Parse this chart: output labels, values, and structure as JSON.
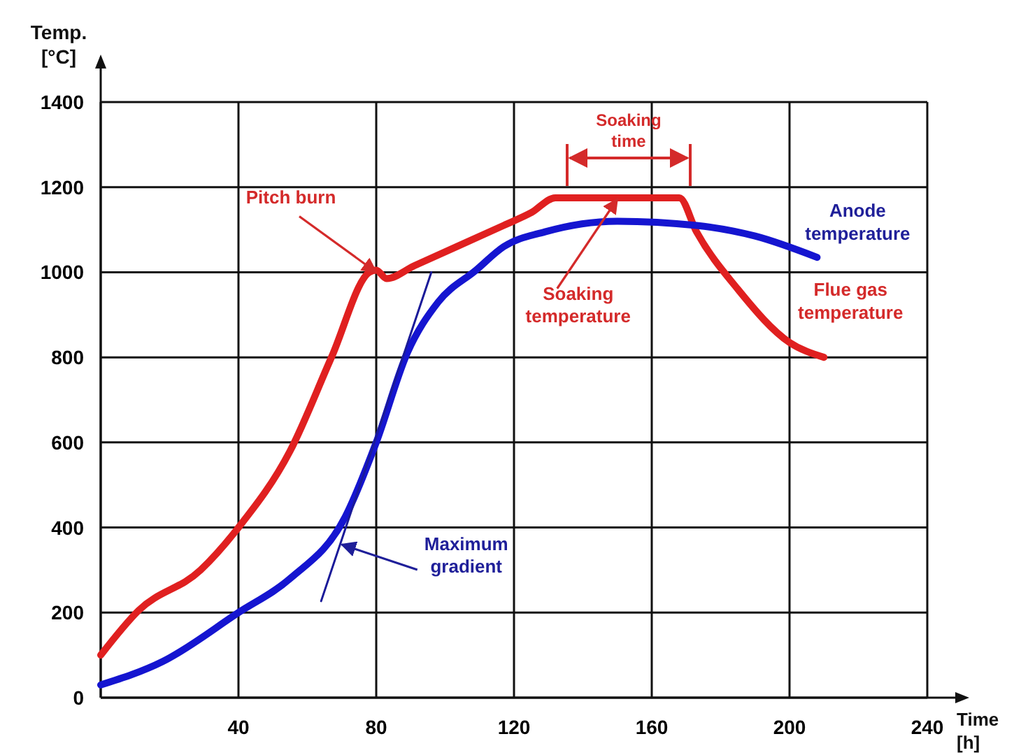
{
  "chart_data": {
    "type": "line",
    "xlabel": "Time\n[h]",
    "ylabel": "Temp.\n[°C]",
    "xlim": [
      0,
      240
    ],
    "ylim": [
      0,
      1400
    ],
    "xticks": [
      {
        "value": 0,
        "label": null
      },
      40,
      80,
      120,
      160,
      200,
      240
    ],
    "yticks": [
      0,
      200,
      400,
      600,
      800,
      1000,
      1200,
      1400
    ],
    "grid": true,
    "series": [
      {
        "name": "Flue gas\ntemperature",
        "color": "#e02020",
        "x": [
          0,
          11,
          29,
          40,
          55,
          67,
          78,
          80,
          83,
          91,
          117,
          125,
          132,
          168,
          173,
          185,
          200,
          210
        ],
        "values": [
          100,
          205,
          300,
          400,
          580,
          800,
          1000,
          1005,
          985,
          1015,
          1110,
          1140,
          1175,
          1175,
          1095,
          960,
          835,
          800
        ]
      },
      {
        "name": "Anode\ntemperature",
        "color": "#1515d0",
        "x": [
          0,
          18,
          40,
          55,
          71,
          80,
          89,
          98,
          109,
          117,
          129,
          150,
          173,
          190,
          208
        ],
        "values": [
          30,
          85,
          200,
          280,
          425,
          600,
          810,
          930,
          1005,
          1060,
          1095,
          1120,
          1110,
          1085,
          1035
        ]
      },
      {
        "color": "#1a1a99",
        "x": [
          64,
          96
        ],
        "values": [
          227,
          1000
        ]
      }
    ],
    "annotations": [
      {
        "text": "Pitch burn",
        "x": 80,
        "y": 1000
      },
      {
        "text": "Maximum\ngradient",
        "x": 70,
        "y": 360
      },
      {
        "text": "Soaking\ntemperature",
        "x": 150,
        "y": 1172
      },
      "Soaking\ntime"
    ]
  }
}
